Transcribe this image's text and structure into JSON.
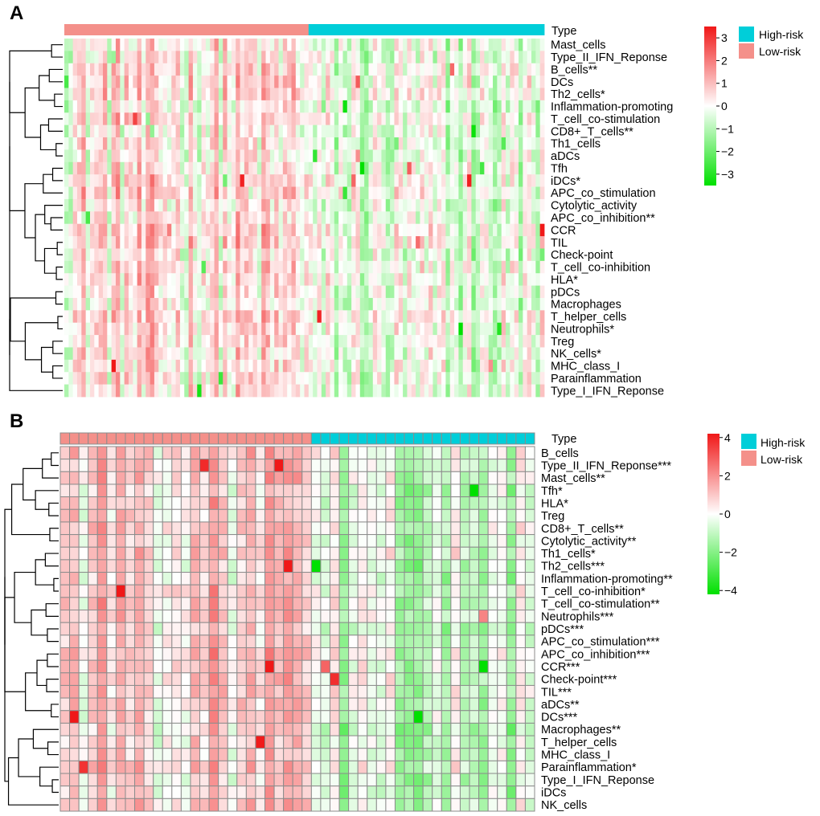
{
  "figure": {
    "panel_a_label": "A",
    "panel_b_label": "B"
  },
  "colors": {
    "high_risk": "#00CED9",
    "low_risk": "#F4908A",
    "heat_low": "#00E000",
    "heat_mid": "#FFFFFF",
    "heat_high": "#F01818",
    "cell_border": "#8C8C8C"
  },
  "chart_data": [
    {
      "panel": "A",
      "type": "heatmap",
      "annotation_label": "Type",
      "groups": [
        {
          "name": "High-risk",
          "color": "#00CED9",
          "n_samples": 55
        },
        {
          "name": "Low-risk",
          "color": "#F4908A",
          "n_samples": 57
        }
      ],
      "column_order": [
        "Low-risk",
        "High-risk"
      ],
      "rows": [
        "Mast_cells",
        "Type_II_IFN_Reponse",
        "B_cells**",
        "DCs",
        "Th2_cells*",
        "Inflammation-promoting",
        "T_cell_co-stimulation",
        "CD8+_T_cells**",
        "Th1_cells",
        "aDCs",
        "Tfh",
        "iDCs*",
        "APC_co_stimulation",
        "Cytolytic_activity",
        "APC_co_inhibition**",
        "CCR",
        "TIL",
        "Check-point",
        "T_cell_co-inhibition",
        "HLA*",
        "pDCs",
        "Macrophages",
        "T_helper_cells",
        "Neutrophils*",
        "Treg",
        "NK_cells*",
        "MHC_class_I",
        "Parainflammation",
        "Type_I_IFN_Reponse"
      ],
      "color_scale": {
        "range": [
          -3.5,
          3.5
        ],
        "ticks": [
          3,
          2,
          1,
          0,
          -1,
          -2,
          -3
        ]
      },
      "cell_borders": false,
      "row_dendrogram": true
    },
    {
      "panel": "B",
      "type": "heatmap",
      "annotation_label": "Type",
      "groups": [
        {
          "name": "High-risk",
          "color": "#00CED9",
          "n_samples": 24
        },
        {
          "name": "Low-risk",
          "color": "#F4908A",
          "n_samples": 27
        }
      ],
      "column_order": [
        "Low-risk",
        "High-risk"
      ],
      "rows": [
        "B_cells",
        "Type_II_IFN_Reponse***",
        "Mast_cells**",
        "Tfh*",
        "HLA*",
        "Treg",
        "CD8+_T_cells**",
        "Cytolytic_activity**",
        "Th1_cells*",
        "Th2_cells***",
        "Inflammation-promoting**",
        "T_cell_co-inhibition*",
        "T_cell_co-stimulation**",
        "Neutrophils***",
        "pDCs***",
        "APC_co_stimulation***",
        "APC_co_inhibition***",
        "CCR***",
        "Check-point***",
        "TIL***",
        "aDCs**",
        "DCs***",
        "Macrophages**",
        "T_helper_cells",
        "MHC_class_I",
        "Parainflammation*",
        "Type_I_IFN_Reponse",
        "iDCs",
        "NK_cells"
      ],
      "color_scale": {
        "range": [
          -4.2,
          4.2
        ],
        "ticks": [
          4,
          2,
          0,
          -2,
          -4
        ]
      },
      "cell_borders": true,
      "row_dendrogram": true
    }
  ]
}
